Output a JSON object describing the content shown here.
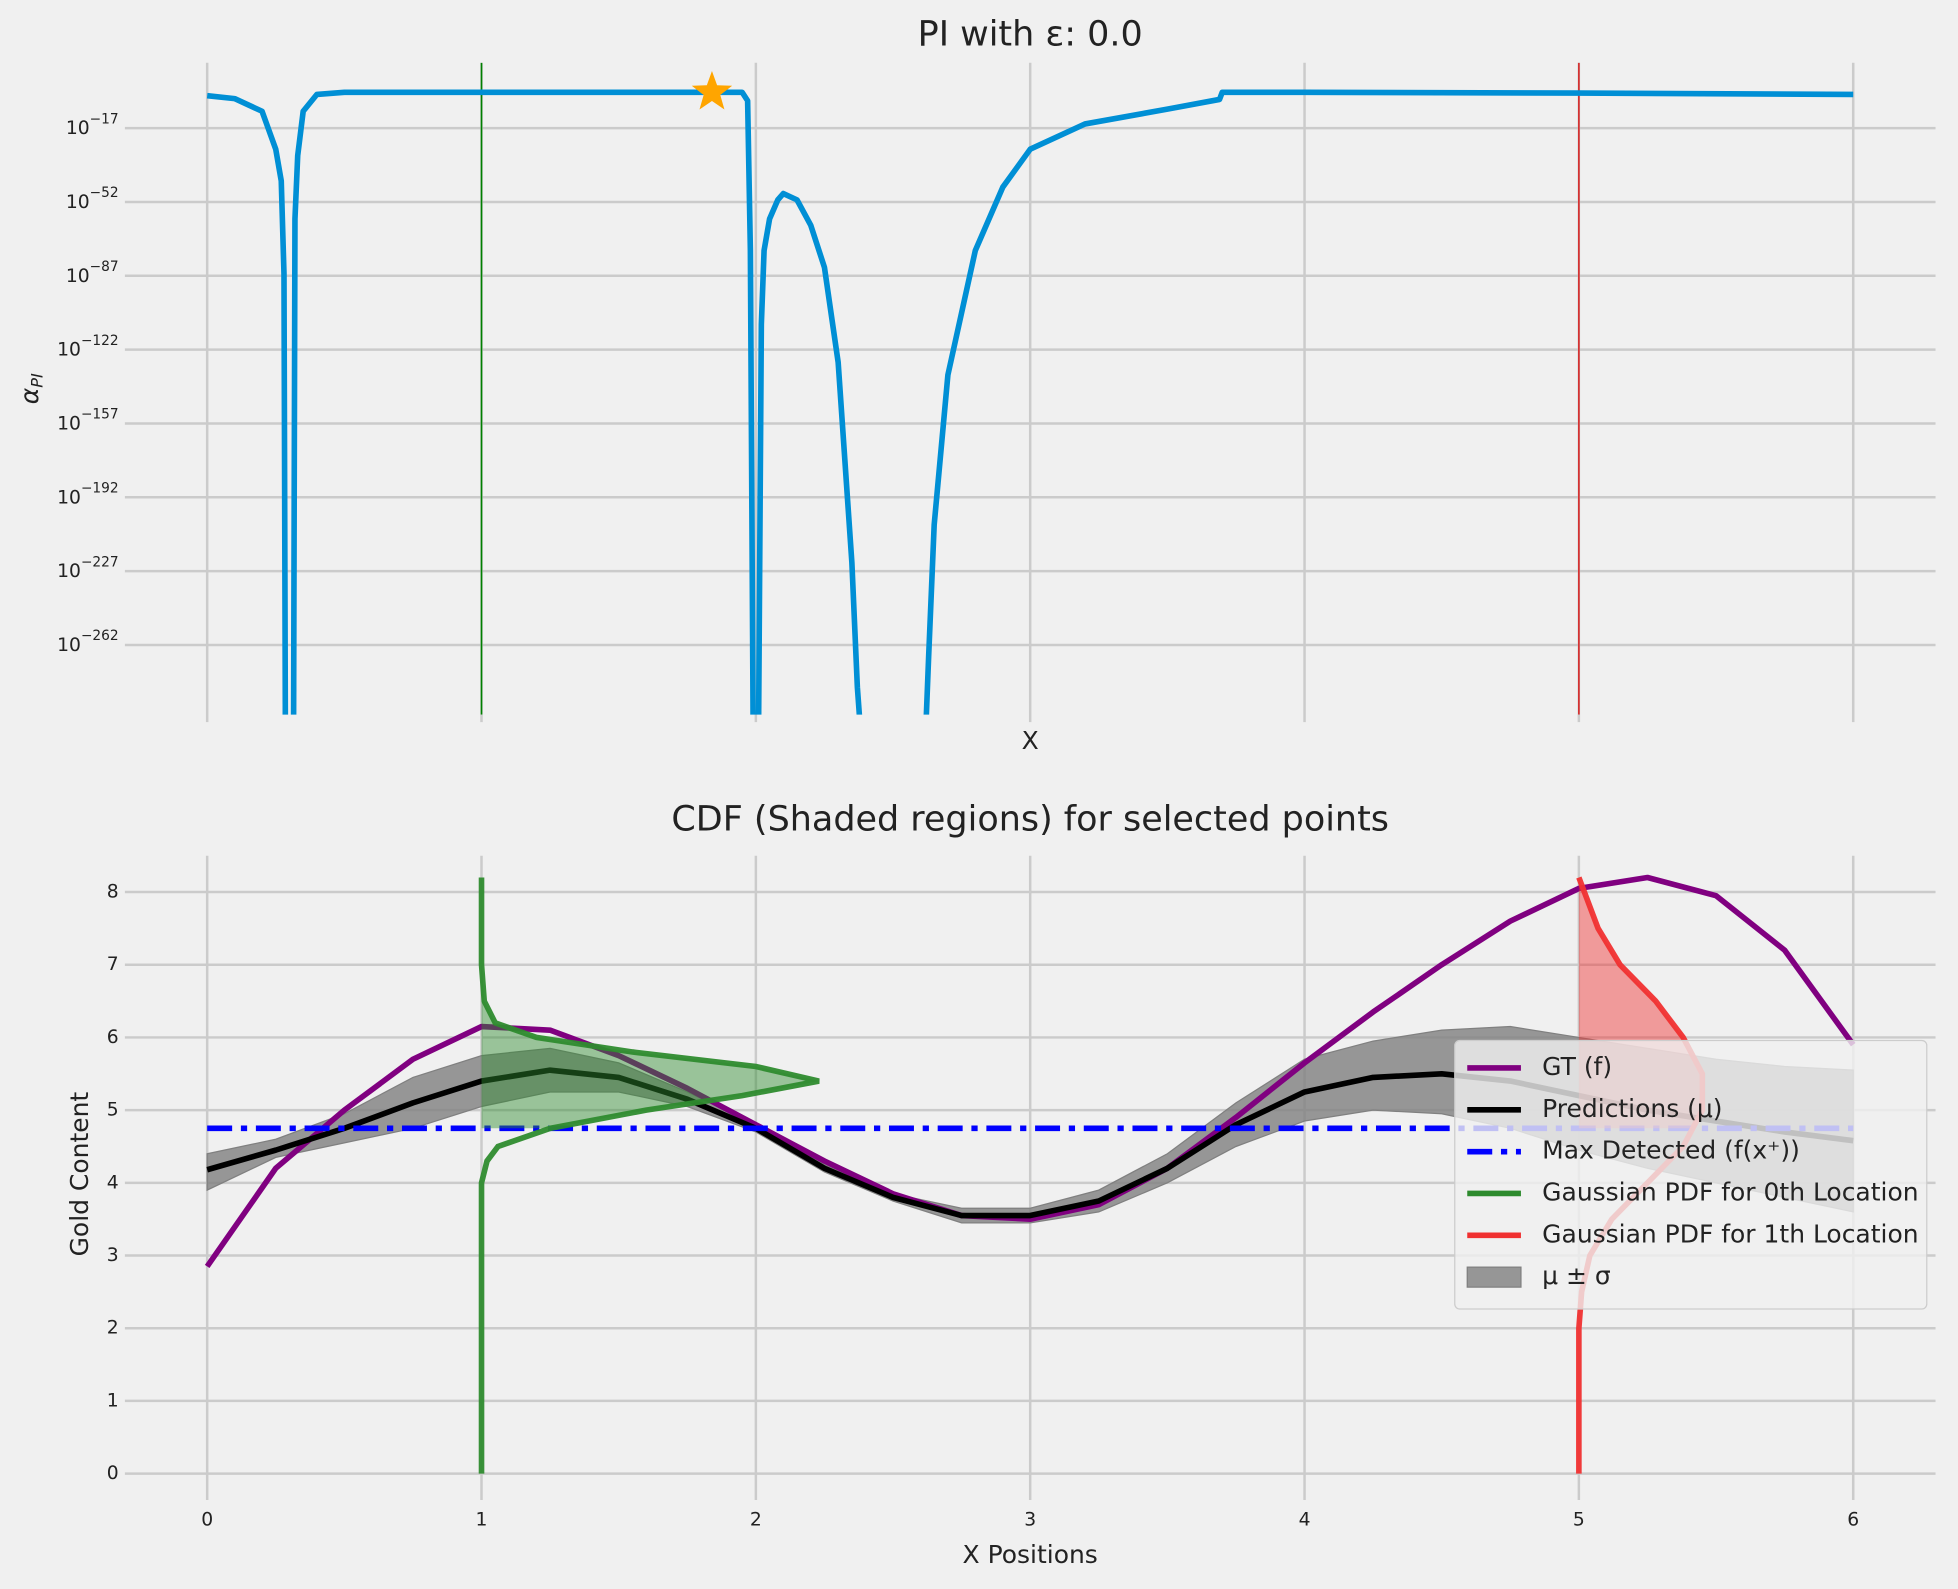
{
  "chart_data": [
    {
      "type": "line",
      "title": "PI with ε: 0.0",
      "xlabel": "X",
      "ylabel": "αPI",
      "yscale": "log",
      "grid": true,
      "show_xtick_labels": false,
      "xlim": [
        -0.3,
        6.3
      ],
      "ylim": [
        1e-295,
        100000000000000.0
      ],
      "xticks": [
        0,
        1,
        2,
        3,
        4,
        5,
        6
      ],
      "yticks": [
        {
          "value": 1e-17,
          "label": "10−17"
        },
        {
          "value": 1e-52,
          "label": "10−52"
        },
        {
          "value": 1e-87,
          "label": "10−87"
        },
        {
          "value": 1e-122,
          "label": "10−122"
        },
        {
          "value": 1e-157,
          "label": "10−157"
        },
        {
          "value": 1e-192,
          "label": "10−192"
        },
        {
          "value": 1e-227,
          "label": "10−227"
        },
        {
          "value": 1e-262,
          "label": "10−262"
        }
      ],
      "series": [
        {
          "color": "#008fd5",
          "x": [
            0,
            0.1,
            0.2,
            0.25,
            0.27,
            0.28,
            0.285,
            0.315,
            0.32,
            0.33,
            0.35,
            0.4,
            0.5,
            1,
            1.5,
            1.95,
            1.97,
            1.98,
            1.99,
            2.01,
            2.02,
            2.03,
            2.05,
            2.08,
            2.1,
            2.15,
            2.2,
            2.25,
            2.3,
            2.35,
            2.37,
            2.38,
            2.62,
            2.63,
            2.65,
            2.7,
            2.8,
            2.9,
            3,
            3.2,
            3.5,
            3.69,
            3.7,
            4,
            5,
            6
          ],
          "values": [
            0.025,
            0.001,
            1e-09,
            1e-27,
            1e-42,
            1e-86,
            1e-300,
            1e-300,
            1e-60,
            1e-30,
            1e-09,
            0.1,
            1,
            1,
            1,
            1,
            0.0001,
            1e-75,
            1e-300,
            1e-300,
            1e-110,
            1e-75,
            1e-60,
            1e-51,
            1e-48,
            1e-51,
            1e-63,
            1e-83,
            1e-128,
            1e-223,
            1e-282,
            1e-300,
            1e-300,
            1e-267,
            1e-205,
            1e-134,
            1e-75,
            1e-45,
            1e-27,
            1e-15,
            1e-08,
            0.0004,
            1,
            1,
            0.4,
            0.1
          ]
        }
      ],
      "vlines": [
        {
          "x": 1,
          "color": "green"
        },
        {
          "x": 5,
          "color": "#d62728"
        }
      ],
      "marker": {
        "x": 1.84,
        "y": 1,
        "color": "orange",
        "shape": "star"
      }
    },
    {
      "type": "line",
      "title": "CDF (Shaded regions) for selected points",
      "xlabel": "X Positions",
      "ylabel": "Gold Content",
      "grid": true,
      "xlim": [
        -0.3,
        6.3
      ],
      "ylim": [
        -0.26,
        8.5
      ],
      "xticks": [
        0,
        1,
        2,
        3,
        4,
        5,
        6
      ],
      "yticks": [
        0,
        1,
        2,
        3,
        4,
        5,
        6,
        7,
        8
      ],
      "legend": "upper right",
      "x": [
        0,
        0.25,
        0.5,
        0.75,
        1,
        1.25,
        1.5,
        1.75,
        2,
        2.25,
        2.5,
        2.75,
        3,
        3.25,
        3.5,
        3.75,
        4,
        4.25,
        4.5,
        4.75,
        5,
        5.25,
        5.5,
        5.75,
        6
      ],
      "series": [
        {
          "name": "GT (f)",
          "color": "#800080",
          "values": [
            2.85,
            4.2,
            5.0,
            5.7,
            6.15,
            6.1,
            5.75,
            5.3,
            4.8,
            4.3,
            3.85,
            3.55,
            3.5,
            3.7,
            4.2,
            4.9,
            5.65,
            6.35,
            7.0,
            7.6,
            8.05,
            8.2,
            7.95,
            7.2,
            5.9
          ]
        },
        {
          "name": "Predictions (μ)",
          "color": "#000000",
          "values": [
            4.18,
            4.45,
            4.75,
            5.1,
            5.4,
            5.55,
            5.45,
            5.15,
            4.75,
            4.2,
            3.8,
            3.55,
            3.55,
            3.75,
            4.2,
            4.8,
            5.25,
            5.45,
            5.5,
            5.4,
            5.2,
            5.0,
            4.85,
            4.7,
            4.58
          ]
        }
      ],
      "hlines": [
        {
          "name": "Max Detected (f(x⁺))",
          "y": 4.75,
          "color": "#0000ff"
        }
      ],
      "pdfs": [
        {
          "name": "Gaussian PDF for 0th Location",
          "color": "#2e8b2e",
          "y": [
            0,
            4,
            4.3,
            4.5,
            4.75,
            5.0,
            5.2,
            5.4,
            5.6,
            5.8,
            6.0,
            6.2,
            6.5,
            7,
            8.2
          ],
          "x": [
            1,
            1,
            1.02,
            1.06,
            1.25,
            1.6,
            1.95,
            2.23,
            2.0,
            1.55,
            1.2,
            1.05,
            1.01,
            1,
            1
          ]
        },
        {
          "name": "Gaussian PDF for 1th Location",
          "color": "#f03030",
          "y": [
            0,
            2,
            2.5,
            3,
            3.5,
            4,
            4.5,
            5,
            5.5,
            6,
            6.5,
            7,
            7.5,
            8,
            8.2
          ],
          "x": [
            5,
            5,
            5.01,
            5.04,
            5.12,
            5.25,
            5.38,
            5.45,
            5.45,
            5.38,
            5.28,
            5.15,
            5.07,
            5.02,
            5
          ]
        }
      ],
      "band": {
        "name": "μ ± σ",
        "color": "#808080",
        "lower": [
          3.9,
          4.35,
          4.55,
          4.75,
          5.05,
          5.25,
          5.25,
          5.05,
          4.7,
          4.15,
          3.75,
          3.45,
          3.45,
          3.6,
          4.0,
          4.5,
          4.85,
          5.0,
          4.95,
          4.75,
          4.45,
          4.2,
          4.0,
          3.8,
          3.6
        ],
        "upper": [
          4.4,
          4.6,
          4.95,
          5.45,
          5.75,
          5.85,
          5.65,
          5.25,
          4.8,
          4.25,
          3.85,
          3.65,
          3.65,
          3.9,
          4.4,
          5.1,
          5.7,
          5.95,
          6.1,
          6.15,
          6.0,
          5.85,
          5.7,
          5.6,
          5.55
        ]
      }
    }
  ]
}
